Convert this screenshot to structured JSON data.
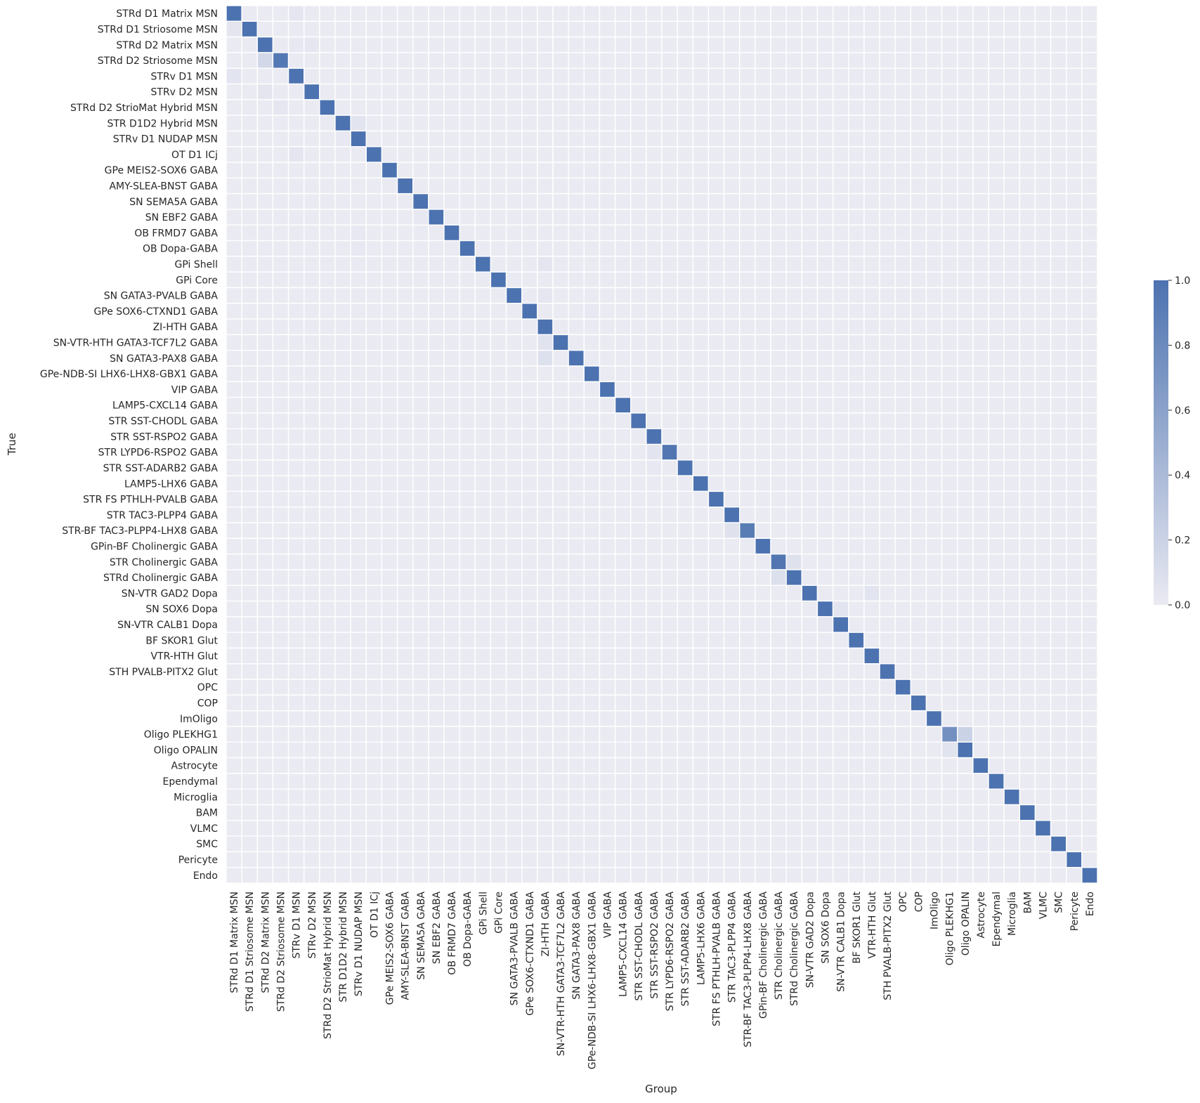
{
  "chart_data": {
    "type": "heatmap",
    "xlabel": "Group",
    "ylabel": "True",
    "categories": [
      "STRd D1 Matrix MSN",
      "STRd D1 Striosome MSN",
      "STRd D2 Matrix MSN",
      "STRd D2 Striosome MSN",
      "STRv D1 MSN",
      "STRv D2 MSN",
      "STRd D2 StrioMat Hybrid MSN",
      "STR D1D2 Hybrid MSN",
      "STRv D1 NUDAP MSN",
      "OT D1 ICj",
      "GPe MEIS2-SOX6 GABA",
      "AMY-SLEA-BNST GABA",
      "SN SEMA5A GABA",
      "SN EBF2 GABA",
      "OB FRMD7 GABA",
      "OB Dopa-GABA",
      "GPi Shell",
      "GPi Core",
      "SN GATA3-PVALB GABA",
      "GPe SOX6-CTXND1 GABA",
      "ZI-HTH GABA",
      "SN-VTR-HTH GATA3-TCF7L2 GABA",
      "SN GATA3-PAX8 GABA",
      "GPe-NDB-SI LHX6-LHX8-GBX1 GABA",
      "VIP GABA",
      "LAMP5-CXCL14 GABA",
      "STR SST-CHODL GABA",
      "STR SST-RSPO2 GABA",
      "STR LYPD6-RSPO2 GABA",
      "STR SST-ADARB2 GABA",
      "LAMP5-LHX6 GABA",
      "STR FS PTHLH-PVALB GABA",
      "STR TAC3-PLPP4 GABA",
      "STR-BF TAC3-PLPP4-LHX8 GABA",
      "GPin-BF Cholinergic GABA",
      "STR Cholinergic GABA",
      "STRd Cholinergic GABA",
      "SN-VTR GAD2 Dopa",
      "SN SOX6 Dopa",
      "SN-VTR CALB1 Dopa",
      "BF SKOR1 Glut",
      "VTR-HTH Glut",
      "STH PVALB-PITX2 Glut",
      "OPC",
      "COP",
      "ImOligo",
      "Oligo PLEKHG1",
      "Oligo OPALIN",
      "Astrocyte",
      "Ependymal",
      "Microglia",
      "BAM",
      "VLMC",
      "SMC",
      "Pericyte",
      "Endo"
    ],
    "diagonal": [
      1.0,
      1.0,
      1.0,
      0.95,
      1.0,
      1.0,
      1.0,
      1.0,
      1.0,
      1.0,
      1.0,
      1.0,
      1.0,
      1.0,
      1.0,
      1.0,
      1.0,
      1.0,
      1.0,
      1.0,
      1.0,
      1.0,
      1.0,
      1.0,
      1.0,
      1.0,
      1.0,
      1.0,
      0.97,
      1.0,
      1.0,
      1.0,
      1.0,
      0.92,
      1.0,
      0.97,
      1.0,
      1.0,
      1.0,
      1.0,
      1.0,
      1.0,
      1.0,
      1.0,
      1.0,
      1.0,
      0.75,
      1.0,
      1.0,
      1.0,
      1.0,
      1.0,
      1.0,
      1.0,
      1.0,
      1.0
    ],
    "off_diagonal": [
      {
        "row": 1,
        "col": 0,
        "value": 0.04
      },
      {
        "row": 0,
        "col": 4,
        "value": 0.03
      },
      {
        "row": 2,
        "col": 4,
        "value": 0.02
      },
      {
        "row": 3,
        "col": 2,
        "value": 0.15
      },
      {
        "row": 4,
        "col": 0,
        "value": 0.05
      },
      {
        "row": 2,
        "col": 5,
        "value": 0.03
      },
      {
        "row": 5,
        "col": 2,
        "value": 0.04
      },
      {
        "row": 6,
        "col": 3,
        "value": 0.03
      },
      {
        "row": 7,
        "col": 8,
        "value": 0.05
      },
      {
        "row": 9,
        "col": 4,
        "value": 0.04
      },
      {
        "row": 8,
        "col": 7,
        "value": 0.02
      },
      {
        "row": 13,
        "col": 12,
        "value": 0.02
      },
      {
        "row": 14,
        "col": 8,
        "value": 0.02
      },
      {
        "row": 15,
        "col": 8,
        "value": 0.02
      },
      {
        "row": 16,
        "col": 20,
        "value": 0.04
      },
      {
        "row": 18,
        "col": 20,
        "value": 0.03
      },
      {
        "row": 19,
        "col": 23,
        "value": 0.02
      },
      {
        "row": 21,
        "col": 20,
        "value": 0.06
      },
      {
        "row": 22,
        "col": 20,
        "value": 0.08
      },
      {
        "row": 28,
        "col": 27,
        "value": 0.05
      },
      {
        "row": 29,
        "col": 27,
        "value": 0.02
      },
      {
        "row": 33,
        "col": 32,
        "value": 0.07
      },
      {
        "row": 35,
        "col": 36,
        "value": 0.07
      },
      {
        "row": 36,
        "col": 35,
        "value": 0.09
      },
      {
        "row": 37,
        "col": 41,
        "value": 0.05
      },
      {
        "row": 38,
        "col": 39,
        "value": 0.05
      },
      {
        "row": 39,
        "col": 38,
        "value": 0.03
      },
      {
        "row": 46,
        "col": 47,
        "value": 0.2
      },
      {
        "row": 47,
        "col": 46,
        "value": 0.06
      },
      {
        "row": 53,
        "col": 48,
        "value": 0.02
      }
    ],
    "vmin": 0.0,
    "vmax": 1.0,
    "colorbar_ticks": [
      "0.0",
      "0.2",
      "0.4",
      "0.6",
      "0.8",
      "1.0"
    ],
    "colormap": {
      "low": "#eaeaf2",
      "high": "#4c72b0"
    },
    "grid_line_color": "#ffffff",
    "colorbar_placement": "right"
  }
}
